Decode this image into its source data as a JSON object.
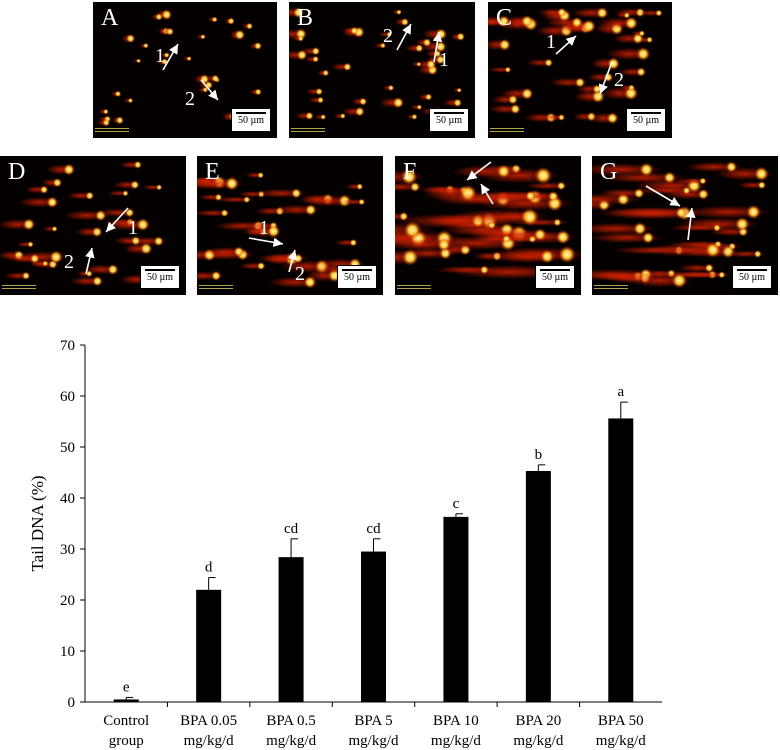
{
  "panels": [
    {
      "label": "A",
      "scale": "50 µm",
      "arrows": [
        "1",
        "2"
      ]
    },
    {
      "label": "B",
      "scale": "50 µm",
      "arrows": [
        "2",
        "1"
      ]
    },
    {
      "label": "C",
      "scale": "50 µm",
      "arrows": [
        "1",
        "2"
      ]
    },
    {
      "label": "D",
      "scale": "50 µm",
      "arrows": [
        "1",
        "2"
      ]
    },
    {
      "label": "E",
      "scale": "50 µm",
      "arrows": [
        "1",
        "2"
      ]
    },
    {
      "label": "F",
      "scale": "50 µm",
      "arrows": []
    },
    {
      "label": "G",
      "scale": "50 µm",
      "arrows": []
    }
  ],
  "colors": {
    "bar": "#000000",
    "panel_bg": "#050000",
    "comet_head": "#ffcc33",
    "comet_tail": "#d02000",
    "label": "#ffffff"
  },
  "chart_data": {
    "type": "bar",
    "ylabel": "Tail DNA (%)",
    "xlabel": "",
    "ylim": [
      0,
      70
    ],
    "yticks": [
      0,
      10,
      20,
      30,
      40,
      50,
      60,
      70
    ],
    "grid": false,
    "categories": [
      [
        "Control",
        "group"
      ],
      [
        "BPA 0.05",
        "mg/kg/d"
      ],
      [
        "BPA 0.5",
        "mg/kg/d"
      ],
      [
        "BPA 5",
        "mg/kg/d"
      ],
      [
        "BPA 10",
        "mg/kg/d"
      ],
      [
        "BPA 20",
        "mg/kg/d"
      ],
      [
        "BPA 50",
        "mg/kg/d"
      ]
    ],
    "values": [
      0.5,
      22.0,
      28.4,
      29.5,
      36.3,
      45.3,
      55.6
    ],
    "errors": [
      0.4,
      2.4,
      3.6,
      2.5,
      0.6,
      1.2,
      3.2
    ],
    "significance": [
      "e",
      "d",
      "cd",
      "cd",
      "c",
      "b",
      "a"
    ]
  }
}
